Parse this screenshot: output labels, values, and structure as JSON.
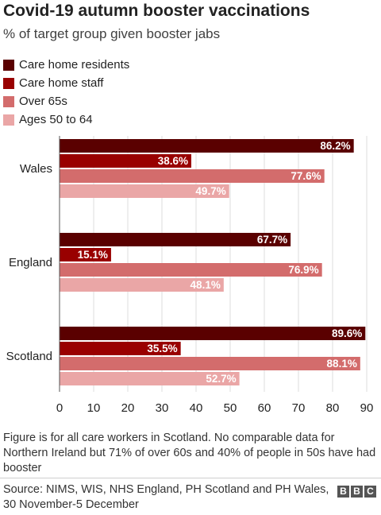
{
  "title": "Covid-19 autumn booster vaccinations",
  "subtitle": "% of target group given booster jabs",
  "note": "Figure is for all care workers in Scotland. No comparable data for Northern Ireland but 71% of over 60s and 40% of people in 50s have had booster",
  "source": "Source: NIMS, WIS, NHS England, PH Scotland and PH Wales, 30 November-5 December",
  "logo": [
    "B",
    "B",
    "C"
  ],
  "chart_data": {
    "type": "bar",
    "orientation": "horizontal",
    "categories": [
      "Wales",
      "England",
      "Scotland"
    ],
    "series": [
      {
        "name": "Care home residents",
        "color": "#5a0000",
        "values": [
          86.2,
          67.7,
          89.6
        ],
        "labels": [
          "86.2%",
          "67.7%",
          "89.6%"
        ]
      },
      {
        "name": "Care home staff",
        "color": "#990000",
        "values": [
          38.6,
          15.1,
          35.5
        ],
        "labels": [
          "38.6%",
          "15.1%",
          "35.5%"
        ]
      },
      {
        "name": "Over 65s",
        "color": "#d36c6c",
        "values": [
          77.6,
          76.9,
          88.1
        ],
        "labels": [
          "77.6%",
          "76.9%",
          "88.1%"
        ]
      },
      {
        "name": "Ages 50 to 64",
        "color": "#eaa6a6",
        "values": [
          49.7,
          48.1,
          52.7
        ],
        "labels": [
          "49.7%",
          "48.1%",
          "52.7%"
        ]
      }
    ],
    "xlim": [
      0,
      90
    ],
    "xticks": [
      "0",
      "10",
      "20",
      "30",
      "40",
      "50",
      "60",
      "70",
      "80",
      "90"
    ],
    "legend_position": "top-left",
    "grid": true
  }
}
